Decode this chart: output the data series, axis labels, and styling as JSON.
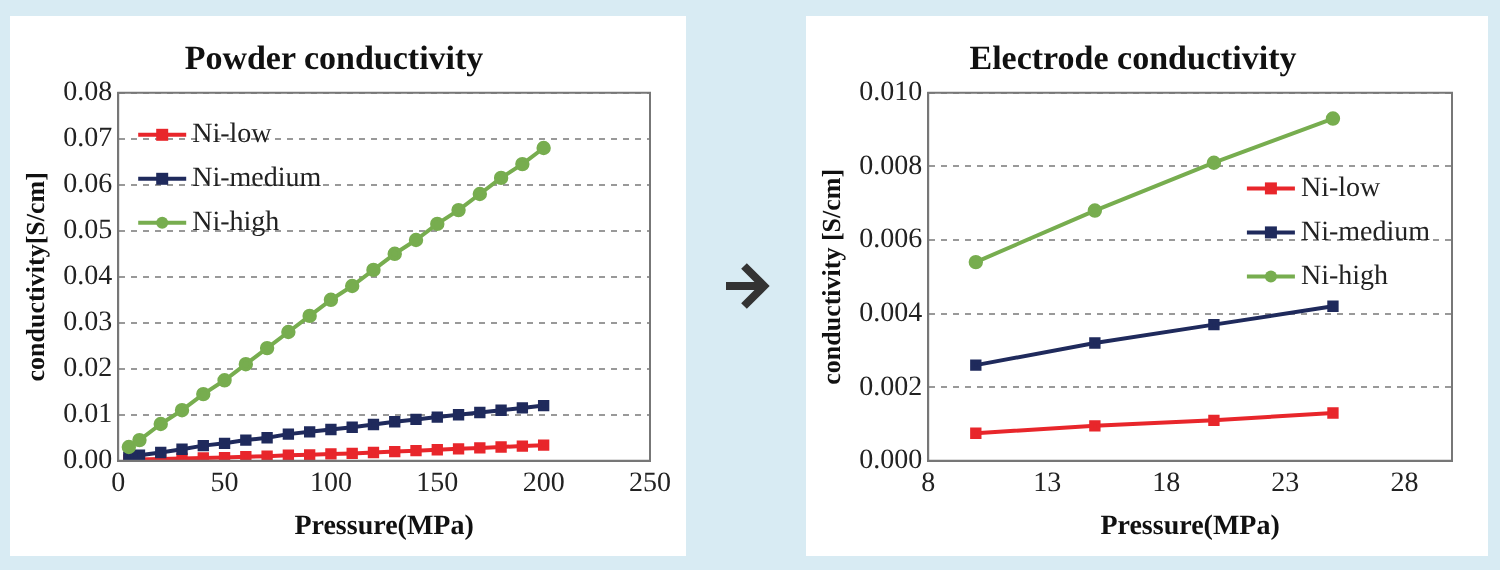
{
  "chart_data": [
    {
      "type": "line",
      "title": "Powder conductivity",
      "xlabel": "Pressure(MPa)",
      "ylabel": "conductivity[S/cm]",
      "x": [
        5,
        10,
        20,
        30,
        40,
        50,
        60,
        70,
        80,
        90,
        100,
        110,
        120,
        130,
        140,
        150,
        160,
        170,
        180,
        190,
        200
      ],
      "series": [
        {
          "name": "Ni-low",
          "color": "#e8262b",
          "marker": "square",
          "values": [
            0.0002,
            0.0003,
            0.0004,
            0.0005,
            0.0006,
            0.0007,
            0.0009,
            0.001,
            0.0012,
            0.0013,
            0.0015,
            0.0016,
            0.0018,
            0.002,
            0.0022,
            0.0024,
            0.0026,
            0.0028,
            0.003,
            0.0032,
            0.0034
          ]
        },
        {
          "name": "Ni-medium",
          "color": "#1f2a5c",
          "marker": "square",
          "values": [
            0.0008,
            0.0012,
            0.0018,
            0.0025,
            0.0033,
            0.0038,
            0.0045,
            0.005,
            0.0058,
            0.0063,
            0.0068,
            0.0073,
            0.0079,
            0.0085,
            0.009,
            0.0095,
            0.01,
            0.0105,
            0.011,
            0.0115,
            0.012
          ]
        },
        {
          "name": "Ni-high",
          "color": "#77ad4f",
          "marker": "circle",
          "values": [
            0.003,
            0.0045,
            0.008,
            0.011,
            0.0145,
            0.0175,
            0.021,
            0.0245,
            0.028,
            0.0315,
            0.035,
            0.038,
            0.0415,
            0.045,
            0.048,
            0.0515,
            0.0545,
            0.058,
            0.0615,
            0.0645,
            0.068
          ]
        }
      ],
      "xlim": [
        0,
        250
      ],
      "xticks": [
        0,
        50,
        100,
        150,
        200,
        250
      ],
      "ylim": [
        0,
        0.08
      ],
      "yticks": [
        {
          "value": 0,
          "label": "0.00"
        },
        {
          "value": 0.01,
          "label": "0.01"
        },
        {
          "value": 0.02,
          "label": "0.02"
        },
        {
          "value": 0.03,
          "label": "0.03"
        },
        {
          "value": 0.04,
          "label": "0.04"
        },
        {
          "value": 0.05,
          "label": "0.05"
        },
        {
          "value": 0.06,
          "label": "0.06"
        },
        {
          "value": 0.07,
          "label": "0.07"
        },
        {
          "value": 0.08,
          "label": "0.08"
        }
      ],
      "grid": "y",
      "legend": "top left"
    },
    {
      "type": "line",
      "title": "Electrode conductivity",
      "xlabel": "Pressure(MPa)",
      "ylabel": "conductivity [S/cm]",
      "x": [
        10,
        15,
        20,
        25
      ],
      "series": [
        {
          "name": "Ni-low",
          "color": "#e8262b",
          "marker": "square",
          "values": [
            0.00075,
            0.00095,
            0.0011,
            0.0013
          ]
        },
        {
          "name": "Ni-medium",
          "color": "#1f2a5c",
          "marker": "square",
          "values": [
            0.0026,
            0.0032,
            0.0037,
            0.0042
          ]
        },
        {
          "name": "Ni-high",
          "color": "#77ad4f",
          "marker": "circle",
          "values": [
            0.0054,
            0.0068,
            0.0081,
            0.0093
          ]
        }
      ],
      "xlim": [
        8,
        30
      ],
      "xticks": [
        8,
        13,
        18,
        23,
        28
      ],
      "ylim": [
        0,
        0.01
      ],
      "yticks": [
        {
          "value": 0,
          "label": "0.000"
        },
        {
          "value": 0.002,
          "label": "0.002"
        },
        {
          "value": 0.004,
          "label": "0.004"
        },
        {
          "value": 0.006,
          "label": "0.006"
        },
        {
          "value": 0.008,
          "label": "0.008"
        },
        {
          "value": 0.01,
          "label": "0.010"
        }
      ],
      "grid": "y",
      "legend": "right"
    }
  ]
}
